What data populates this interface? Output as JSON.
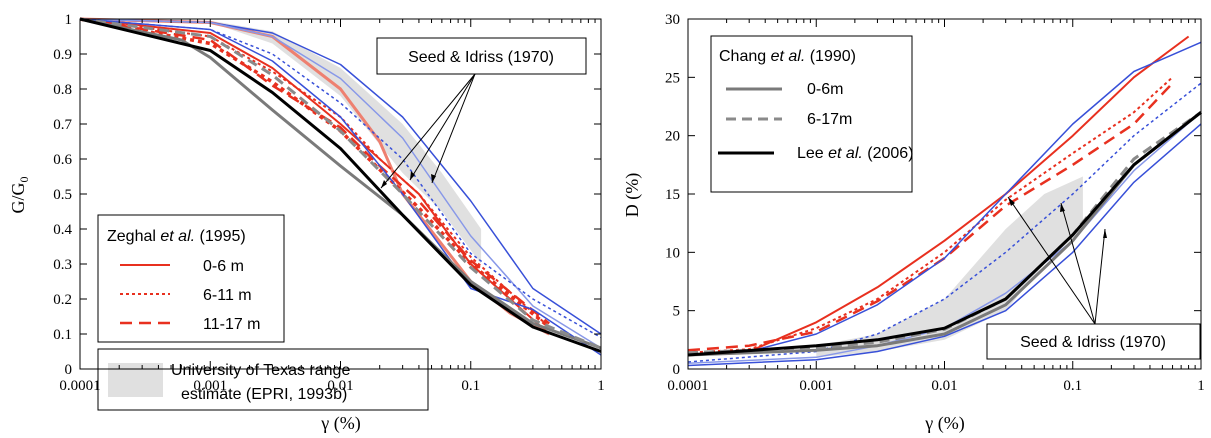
{
  "chart_data": [
    {
      "type": "line",
      "xscale": "log",
      "xlim": [
        0.0001,
        1
      ],
      "ylim": [
        0,
        1
      ],
      "xticks": [
        "0.0001",
        "0.001",
        "0.01",
        "0.1",
        "1"
      ],
      "yticks": [
        "0",
        "0.1",
        "0.2",
        "0.3",
        "0.4",
        "0.5",
        "0.6",
        "0.7",
        "0.8",
        "0.9",
        "1"
      ],
      "xlabel": "γ (%)",
      "ylabel": "G/G0",
      "ylabel_main": "G/G",
      "ylabel_sub": "0",
      "legend_title_pre": "Zeghal ",
      "legend_title_em": "et al.",
      "legend_title_post": " (1995)",
      "shade_legend_line1": "University of Texas range",
      "shade_legend_line2": "estimate (EPRI, 1993b)",
      "annotation": "Seed & Idriss (1970)",
      "band": {
        "color": "#e0e0e0",
        "upper": [
          [
            0.0001,
            1.0
          ],
          [
            0.001,
            0.995
          ],
          [
            0.003,
            0.965
          ],
          [
            0.01,
            0.86
          ],
          [
            0.03,
            0.7
          ],
          [
            0.06,
            0.56
          ],
          [
            0.12,
            0.4
          ]
        ],
        "lower": [
          [
            0.0001,
            1.0
          ],
          [
            0.001,
            0.99
          ],
          [
            0.003,
            0.93
          ],
          [
            0.01,
            0.78
          ],
          [
            0.03,
            0.56
          ],
          [
            0.06,
            0.45
          ],
          [
            0.12,
            0.3
          ]
        ]
      },
      "series": [
        {
          "name": "0-6 m",
          "color": "#e8301f",
          "width": 2,
          "dash": "",
          "points": [
            [
              0.0001,
              1.0
            ],
            [
              0.001,
              0.96
            ],
            [
              0.003,
              0.86
            ],
            [
              0.01,
              0.7
            ],
            [
              0.02,
              0.6
            ],
            [
              0.04,
              0.5
            ],
            [
              0.1,
              0.3
            ],
            [
              0.2,
              0.2
            ],
            [
              0.4,
              0.1
            ]
          ]
        },
        {
          "name": "",
          "color": "#ee8070",
          "width": 3,
          "dash": "",
          "points": [
            [
              0.0001,
              1.0
            ],
            [
              0.001,
              0.99
            ],
            [
              0.003,
              0.95
            ],
            [
              0.01,
              0.8
            ],
            [
              0.02,
              0.65
            ],
            [
              0.03,
              0.5
            ],
            [
              0.1,
              0.25
            ],
            [
              0.2,
              0.16
            ],
            [
              0.4,
              0.1
            ]
          ]
        },
        {
          "name": "6-11 m",
          "color": "#e8301f",
          "width": 2,
          "dash": "3,3",
          "points": [
            [
              0.0001,
              1.0
            ],
            [
              0.001,
              0.95
            ],
            [
              0.003,
              0.85
            ],
            [
              0.01,
              0.72
            ],
            [
              0.02,
              0.6
            ],
            [
              0.04,
              0.5
            ],
            [
              0.1,
              0.32
            ],
            [
              0.2,
              0.22
            ],
            [
              0.4,
              0.12
            ]
          ]
        },
        {
          "name": "",
          "color": "#e8301f",
          "width": 3.5,
          "dash": "4,4",
          "points": [
            [
              0.0001,
              1.0
            ],
            [
              0.001,
              0.93
            ],
            [
              0.003,
              0.82
            ],
            [
              0.01,
              0.68
            ],
            [
              0.02,
              0.57
            ],
            [
              0.04,
              0.46
            ],
            [
              0.1,
              0.3
            ],
            [
              0.2,
              0.21
            ],
            [
              0.4,
              0.12
            ]
          ]
        },
        {
          "name": "11-17 m",
          "color": "#e8301f",
          "width": 2.5,
          "dash": "12,7",
          "points": [
            [
              0.0001,
              1.0
            ],
            [
              0.001,
              0.94
            ],
            [
              0.003,
              0.81
            ],
            [
              0.01,
              0.69
            ],
            [
              0.02,
              0.58
            ],
            [
              0.04,
              0.48
            ],
            [
              0.1,
              0.31
            ],
            [
              0.2,
              0.22
            ],
            [
              0.4,
              0.13
            ]
          ]
        },
        {
          "name": "",
          "color": "#3850d8",
          "width": 1.5,
          "dash": "",
          "points": [
            [
              0.0001,
              1.0
            ],
            [
              0.001,
              0.99
            ],
            [
              0.003,
              0.96
            ],
            [
              0.01,
              0.87
            ],
            [
              0.03,
              0.72
            ],
            [
              0.1,
              0.48
            ],
            [
              0.3,
              0.23
            ],
            [
              1,
              0.1
            ]
          ]
        },
        {
          "name": "",
          "color": "#8898e8",
          "width": 1.5,
          "dash": "",
          "points": [
            [
              0.0001,
              1.0
            ],
            [
              0.001,
              0.99
            ],
            [
              0.003,
              0.95
            ],
            [
              0.01,
              0.83
            ],
            [
              0.03,
              0.66
            ],
            [
              0.1,
              0.38
            ],
            [
              0.3,
              0.18
            ],
            [
              1,
              0.06
            ]
          ]
        },
        {
          "name": "",
          "color": "#3850d8",
          "width": 1.5,
          "dash": "3,3",
          "points": [
            [
              0.0001,
              1.0
            ],
            [
              0.001,
              0.97
            ],
            [
              0.003,
              0.9
            ],
            [
              0.01,
              0.76
            ],
            [
              0.03,
              0.6
            ],
            [
              0.1,
              0.33
            ],
            [
              0.3,
              0.2
            ],
            [
              1,
              0.09
            ]
          ]
        },
        {
          "name": "",
          "color": "#3850d8",
          "width": 1.5,
          "dash": "",
          "points": [
            [
              0.0001,
              1.0
            ],
            [
              0.001,
              0.97
            ],
            [
              0.003,
              0.88
            ],
            [
              0.01,
              0.72
            ],
            [
              0.03,
              0.5
            ],
            [
              0.1,
              0.23
            ],
            [
              0.3,
              0.17
            ],
            [
              1,
              0.04
            ]
          ]
        },
        {
          "name": "",
          "color": "#7a7a7a",
          "width": 3,
          "dash": "",
          "points": [
            [
              0.0001,
              1.0
            ],
            [
              0.0006,
              0.94
            ],
            [
              0.001,
              0.89
            ],
            [
              0.003,
              0.74
            ],
            [
              0.01,
              0.58
            ],
            [
              0.03,
              0.44
            ],
            [
              0.1,
              0.25
            ],
            [
              0.3,
              0.13
            ],
            [
              1,
              0.06
            ]
          ]
        },
        {
          "name": "",
          "color": "#8a8a8a",
          "width": 3,
          "dash": "10,6",
          "points": [
            [
              0.0001,
              1.0
            ],
            [
              0.001,
              0.95
            ],
            [
              0.003,
              0.84
            ],
            [
              0.01,
              0.68
            ],
            [
              0.03,
              0.5
            ],
            [
              0.1,
              0.29
            ],
            [
              0.3,
              0.14
            ],
            [
              1,
              0.06
            ]
          ]
        },
        {
          "name": "",
          "color": "#000000",
          "width": 3,
          "dash": "",
          "points": [
            [
              0.0001,
              1.0
            ],
            [
              0.001,
              0.91
            ],
            [
              0.003,
              0.79
            ],
            [
              0.01,
              0.63
            ],
            [
              0.03,
              0.44
            ],
            [
              0.1,
              0.24
            ],
            [
              0.3,
              0.12
            ],
            [
              1,
              0.05
            ]
          ]
        }
      ]
    },
    {
      "type": "line",
      "xscale": "log",
      "xlim": [
        0.0001,
        1
      ],
      "ylim": [
        0,
        30
      ],
      "xticks": [
        "0.0001",
        "0.001",
        "0.01",
        "0.1",
        "1"
      ],
      "yticks": [
        "0",
        "5",
        "10",
        "15",
        "20",
        "25",
        "30"
      ],
      "xlabel": "γ (%)",
      "ylabel": "D (%)",
      "legend_title_pre": "Chang ",
      "legend_title_em": "et al.",
      "legend_title_post": " (1990)",
      "legend_items": [
        "0-6m",
        "6-17m"
      ],
      "lee_pre": "Lee ",
      "lee_em": "et al.",
      "lee_post": " (2006)",
      "annotation": "Seed & Idriss (1970)",
      "band": {
        "color": "#e0e0e0",
        "upper": [
          [
            0.001,
            2.0
          ],
          [
            0.003,
            3.0
          ],
          [
            0.01,
            6.0
          ],
          [
            0.03,
            12.0
          ],
          [
            0.06,
            15.0
          ],
          [
            0.12,
            16.5
          ]
        ],
        "lower": [
          [
            0.001,
            1.0
          ],
          [
            0.003,
            1.5
          ],
          [
            0.01,
            2.5
          ],
          [
            0.03,
            5.0
          ],
          [
            0.06,
            9.0
          ],
          [
            0.12,
            12.0
          ]
        ]
      },
      "series": [
        {
          "name": "",
          "color": "#e8301f",
          "width": 2,
          "dash": "",
          "points": [
            [
              0.0001,
              1.2
            ],
            [
              0.0003,
              1.5
            ],
            [
              0.001,
              4.0
            ],
            [
              0.003,
              7.0
            ],
            [
              0.01,
              11.0
            ],
            [
              0.03,
              15.0
            ],
            [
              0.1,
              20.0
            ],
            [
              0.3,
              25.0
            ],
            [
              0.8,
              28.5
            ]
          ]
        },
        {
          "name": "",
          "color": "#e8301f",
          "width": 2,
          "dash": "3,3",
          "points": [
            [
              0.0001,
              1.4
            ],
            [
              0.0003,
              1.7
            ],
            [
              0.001,
              3.5
            ],
            [
              0.003,
              6.0
            ],
            [
              0.01,
              10.0
            ],
            [
              0.03,
              14.5
            ],
            [
              0.1,
              18.5
            ],
            [
              0.3,
              22.0
            ],
            [
              0.6,
              25.0
            ]
          ]
        },
        {
          "name": "",
          "color": "#e8301f",
          "width": 2.5,
          "dash": "12,7",
          "points": [
            [
              0.0001,
              1.6
            ],
            [
              0.0003,
              2.0
            ],
            [
              0.001,
              3.2
            ],
            [
              0.003,
              5.8
            ],
            [
              0.01,
              9.5
            ],
            [
              0.03,
              14.0
            ],
            [
              0.1,
              17.5
            ],
            [
              0.3,
              21.0
            ],
            [
              0.6,
              24.5
            ]
          ]
        },
        {
          "name": "",
          "color": "#3850d8",
          "width": 1.5,
          "dash": "",
          "points": [
            [
              0.0001,
              1.2
            ],
            [
              0.0003,
              1.5
            ],
            [
              0.001,
              3.0
            ],
            [
              0.003,
              5.5
            ],
            [
              0.01,
              9.5
            ],
            [
              0.03,
              15.0
            ],
            [
              0.1,
              21.0
            ],
            [
              0.3,
              25.5
            ],
            [
              1,
              28.0
            ]
          ]
        },
        {
          "name": "",
          "color": "#3850d8",
          "width": 1.5,
          "dash": "3,3",
          "points": [
            [
              0.0001,
              0.6
            ],
            [
              0.001,
              1.5
            ],
            [
              0.003,
              3.0
            ],
            [
              0.01,
              6.0
            ],
            [
              0.03,
              10.0
            ],
            [
              0.1,
              15.0
            ],
            [
              0.3,
              20.0
            ],
            [
              1,
              24.5
            ]
          ]
        },
        {
          "name": "",
          "color": "#3850d8",
          "width": 1.5,
          "dash": "",
          "points": [
            [
              0.0001,
              0.3
            ],
            [
              0.001,
              0.8
            ],
            [
              0.003,
              1.5
            ],
            [
              0.01,
              2.8
            ],
            [
              0.03,
              5.0
            ],
            [
              0.1,
              10.0
            ],
            [
              0.3,
              16.0
            ],
            [
              1,
              21.0
            ]
          ]
        },
        {
          "name": "",
          "color": "#8898e8",
          "width": 1.5,
          "dash": "",
          "points": [
            [
              0.0001,
              0.5
            ],
            [
              0.001,
              1.0
            ],
            [
              0.003,
              2.0
            ],
            [
              0.01,
              3.5
            ],
            [
              0.03,
              6.5
            ],
            [
              0.1,
              11.0
            ],
            [
              0.3,
              17.0
            ],
            [
              1,
              22.0
            ]
          ]
        },
        {
          "name": "",
          "color": "#7a7a7a",
          "width": 3,
          "dash": "",
          "points": [
            [
              0.0001,
              1.2
            ],
            [
              0.001,
              1.6
            ],
            [
              0.003,
              2.0
            ],
            [
              0.01,
              3.0
            ],
            [
              0.03,
              5.5
            ],
            [
              0.1,
              11.0
            ],
            [
              0.3,
              17.5
            ],
            [
              1,
              22.0
            ]
          ]
        },
        {
          "name": "",
          "color": "#8a8a8a",
          "width": 3,
          "dash": "10,6",
          "points": [
            [
              0.0001,
              1.4
            ],
            [
              0.001,
              1.8
            ],
            [
              0.003,
              2.3
            ],
            [
              0.01,
              3.4
            ],
            [
              0.03,
              6.0
            ],
            [
              0.1,
              11.5
            ],
            [
              0.3,
              18.0
            ],
            [
              1,
              22.0
            ]
          ]
        },
        {
          "name": "",
          "color": "#000000",
          "width": 3,
          "dash": "",
          "points": [
            [
              0.0001,
              1.2
            ],
            [
              0.001,
              2.0
            ],
            [
              0.003,
              2.5
            ],
            [
              0.01,
              3.5
            ],
            [
              0.03,
              6.0
            ],
            [
              0.1,
              11.5
            ],
            [
              0.3,
              17.5
            ],
            [
              1,
              22.0
            ]
          ]
        }
      ]
    }
  ]
}
